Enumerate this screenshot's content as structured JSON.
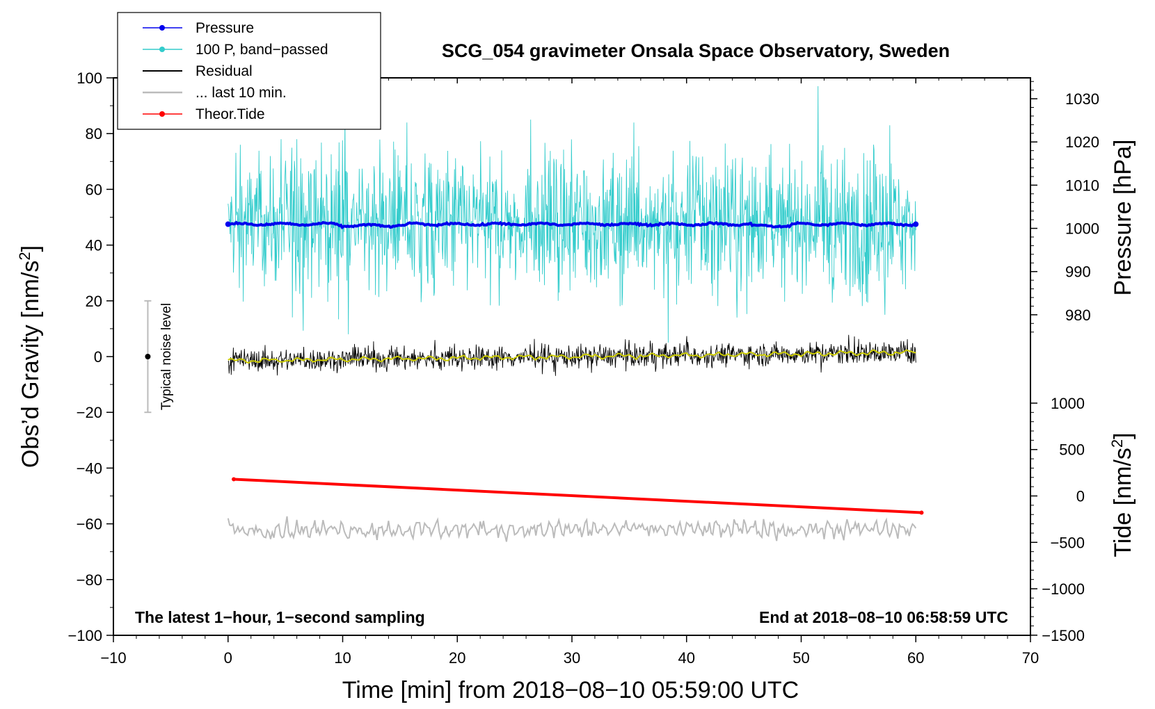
{
  "chart_data": {
    "type": "line",
    "title": "SCG_054 gravimeter Onsala Space Observatory, Sweden",
    "xlabel": "Time [min] from 2018−08−10 05:59:00 UTC",
    "ylabel": "Obs’d Gravity [nm/s",
    "ylabel_sup": "2",
    "ylabel_end": "]",
    "y2label_pressure": "Pressure [hPa]",
    "y2label_tide": "Tide [nm/s",
    "y2label_tide_sup": "2",
    "y2label_tide_end": "]",
    "xlim": [
      -10,
      70
    ],
    "ylim": [
      -100,
      100
    ],
    "xticks": [
      -10,
      0,
      10,
      20,
      30,
      40,
      50,
      60,
      70
    ],
    "xtick_labels": [
      "−10",
      "0",
      "10",
      "20",
      "30",
      "40",
      "50",
      "60",
      "70"
    ],
    "yticks": [
      -100,
      -80,
      -60,
      -40,
      -20,
      0,
      20,
      40,
      60,
      80,
      100
    ],
    "ytick_labels": [
      "−100",
      "−80",
      "−60",
      "−40",
      "−20",
      "0",
      "20",
      "40",
      "60",
      "80",
      "100"
    ],
    "pressure_axis": {
      "ticks": [
        980,
        990,
        1000,
        1010,
        1020,
        1030
      ],
      "labels": [
        "980",
        "990",
        "1000",
        "1010",
        "1020",
        "1030"
      ],
      "map_gravity_at_1000": 46,
      "gravity_per_hpa": 1.55
    },
    "tide_axis": {
      "ticks": [
        -1500,
        -1000,
        -500,
        0,
        500,
        1000
      ],
      "labels": [
        "−1500",
        "−1000",
        "−500",
        "0",
        "500",
        "1000"
      ],
      "map_gravity_at_0": -50,
      "gravity_per_unit": 0.0333
    },
    "legend": [
      {
        "label": "Pressure",
        "color": "#0000ee",
        "marker": true
      },
      {
        "label": "100 P, band−passed",
        "color": "#33cccc",
        "marker": true
      },
      {
        "label": "Residual",
        "color": "#000000",
        "marker": false
      },
      {
        "label": "... last 10 min.",
        "color": "#bbbbbb",
        "marker": false
      },
      {
        "label": "Theor.Tide",
        "color": "#ff0000",
        "marker": true
      }
    ],
    "series": [
      {
        "name": "Pressure",
        "color": "#0000ee",
        "x_range": [
          0,
          60
        ],
        "level_gravity": 47.5,
        "approx_hpa": 1000.5
      },
      {
        "name": "100 P, band−passed",
        "color": "#33cccc",
        "x_range": [
          0,
          60
        ],
        "center_gravity": 48,
        "min_gravity": 5,
        "max_gravity": 97
      },
      {
        "name": "Residual",
        "color": "#000000",
        "x_range": [
          0,
          60
        ],
        "start_gravity": -1.5,
        "end_gravity": 1.5,
        "spread": 4
      },
      {
        "name": "Residual smoothed",
        "color": "#cccc00",
        "x_range": [
          0,
          60
        ],
        "start_gravity": -1.5,
        "end_gravity": 1.5
      },
      {
        "name": "... last 10 min.",
        "color": "#bbbbbb",
        "x_range": [
          0,
          60
        ],
        "center_gravity": -62,
        "spread": 3
      },
      {
        "name": "Theor.Tide",
        "color": "#ff0000",
        "x": [
          0.5,
          60.5
        ],
        "y_gravity": [
          -44,
          -56
        ],
        "y_tide": [
          180,
          -180
        ]
      }
    ],
    "noise_bar": {
      "label": "Typical noise level",
      "x": -7,
      "center": 0,
      "low": -20,
      "high": 20
    },
    "bottom_left_label": "The latest 1−hour, 1−second sampling",
    "bottom_right_label": "End at 2018−08−10 06:58:59 UTC"
  }
}
